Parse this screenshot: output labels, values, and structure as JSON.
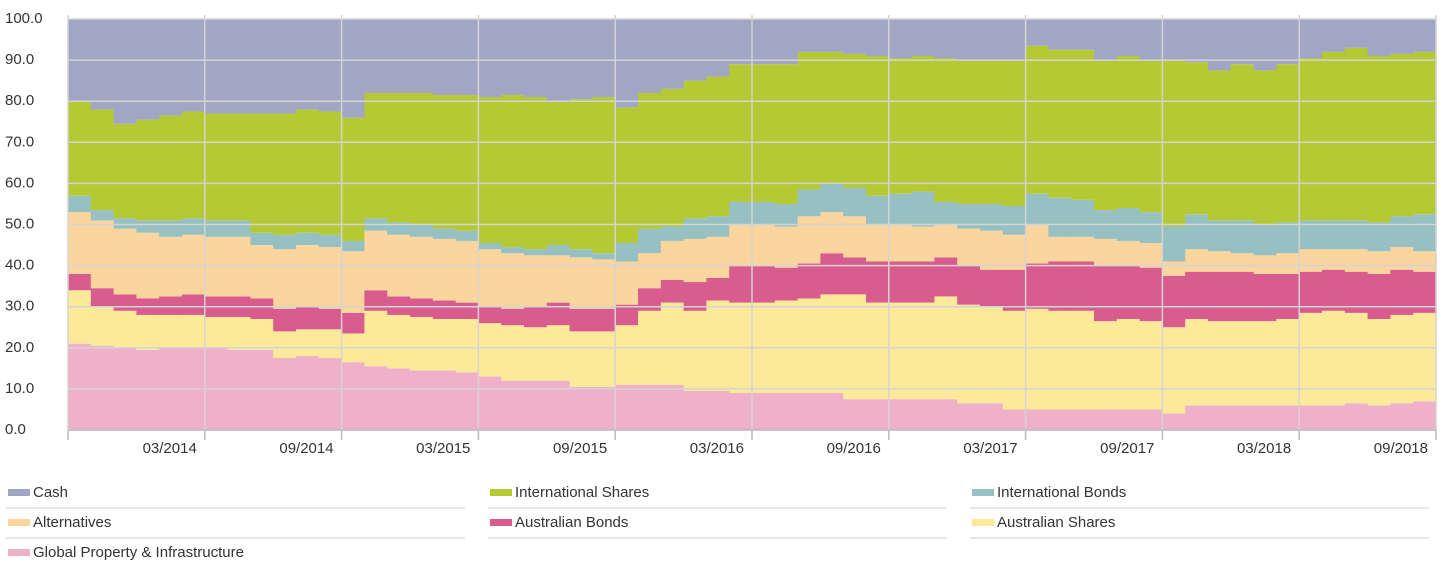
{
  "chart_data": {
    "type": "stacked_step_area",
    "categories": [
      null,
      null,
      null,
      null,
      null,
      "03/2014",
      null,
      null,
      null,
      null,
      null,
      "09/2014",
      null,
      null,
      null,
      null,
      null,
      "03/2015",
      null,
      null,
      null,
      null,
      null,
      "09/2015",
      null,
      null,
      null,
      null,
      null,
      "03/2016",
      null,
      null,
      null,
      null,
      null,
      "09/2016",
      null,
      null,
      null,
      null,
      null,
      "03/2017",
      null,
      null,
      null,
      null,
      null,
      "09/2017",
      null,
      null,
      null,
      null,
      null,
      "03/2018",
      null,
      null,
      null,
      null,
      null,
      "09/2018"
    ],
    "series": [
      {
        "name": "Cash",
        "color": "#a0a6c4",
        "values": [
          20,
          22,
          25.5,
          24.5,
          23.5,
          22.5,
          23,
          23,
          23,
          23,
          22,
          22.5,
          24,
          18,
          18,
          18,
          18.5,
          18.5,
          19,
          18.5,
          19,
          20,
          19.5,
          19,
          21.5,
          18,
          17,
          15,
          14,
          11,
          11,
          11,
          8,
          8,
          8.5,
          9,
          9.5,
          9,
          9.5,
          10,
          10,
          10,
          6.5,
          7.5,
          7.5,
          10,
          9,
          10,
          10,
          10.5,
          12.5,
          11,
          12.5,
          11,
          9.5,
          8,
          7,
          9,
          8.5,
          8
        ]
      },
      {
        "name": "International Shares",
        "color": "#b5c935",
        "values": [
          23,
          24.5,
          23,
          24.5,
          25.5,
          26,
          26,
          26,
          29,
          29.5,
          30,
          30,
          30,
          30.5,
          31.5,
          32,
          32.5,
          33,
          35.5,
          37,
          37,
          35,
          36.5,
          38,
          33,
          33,
          33.5,
          33.5,
          34,
          33.5,
          33.5,
          34,
          33.5,
          32,
          32.5,
          34,
          33,
          33,
          35,
          35,
          35,
          35.5,
          36,
          36,
          36.5,
          36.5,
          37,
          37,
          40.5,
          37,
          36.5,
          38,
          37.5,
          38.5,
          39.5,
          41,
          42,
          40.5,
          39.5,
          39.5
        ]
      },
      {
        "name": "International Bonds",
        "color": "#96c0c2",
        "values": [
          4,
          2.5,
          2.5,
          3,
          4,
          4,
          4,
          4,
          3,
          3.5,
          3,
          3,
          2.5,
          3,
          3,
          3,
          2.5,
          2.5,
          1.5,
          1.5,
          1.5,
          2.5,
          2,
          1.5,
          4.5,
          6,
          3.5,
          5,
          5,
          5.5,
          5.5,
          5.5,
          6.5,
          7,
          7,
          7,
          7.5,
          8.5,
          5.5,
          6,
          6.5,
          7,
          7.5,
          9.5,
          9,
          7,
          8,
          7.5,
          8.5,
          8.5,
          7.5,
          8,
          7.5,
          7.5,
          7,
          7,
          7,
          7,
          7.5,
          9
        ]
      },
      {
        "name": "Alternatives",
        "color": "#fbd59e",
        "values": [
          15,
          16.5,
          16,
          16,
          14.5,
          14.5,
          14.5,
          14.5,
          13,
          14.5,
          15,
          15,
          15,
          14.5,
          15,
          15,
          15,
          15,
          14,
          13.5,
          12.5,
          11.5,
          12.5,
          12,
          10.5,
          8.5,
          9.5,
          10.5,
          10,
          10,
          10,
          10,
          11.5,
          10,
          10,
          9,
          9,
          8.5,
          8,
          9,
          9.5,
          8.5,
          9.5,
          6,
          6,
          6.5,
          6,
          6,
          3.5,
          5.5,
          5,
          4.5,
          4.5,
          5,
          5.5,
          5,
          5.5,
          5.5,
          5.5,
          5
        ]
      },
      {
        "name": "Australian Bonds",
        "color": "#d95c8e",
        "values": [
          4,
          4.5,
          4,
          4,
          4.5,
          5,
          5,
          5,
          5,
          5.5,
          5.5,
          5,
          5,
          5,
          4.5,
          4.5,
          4.5,
          4,
          4,
          4,
          5,
          5.5,
          5.5,
          5.5,
          5,
          5.5,
          5.5,
          7,
          5.5,
          9,
          9,
          8,
          8.5,
          10,
          9,
          10,
          10,
          10,
          9.5,
          9.5,
          9,
          10,
          11,
          12,
          12,
          13.5,
          13,
          13,
          12.5,
          11.5,
          12,
          12,
          11.5,
          11,
          10,
          10,
          10,
          11,
          11,
          10
        ]
      },
      {
        "name": "Australian Shares",
        "color": "#fde99a",
        "values": [
          13,
          9.5,
          9,
          8.5,
          8,
          8,
          7.5,
          8,
          7.5,
          6.5,
          6.5,
          7,
          7,
          13.5,
          13,
          13,
          12.5,
          13,
          13,
          13.5,
          13,
          13.5,
          13.5,
          13.5,
          14.5,
          18,
          20,
          19.5,
          22,
          22,
          22,
          22.5,
          23,
          24,
          25.5,
          23.5,
          23.5,
          23.5,
          25,
          24,
          23.5,
          24,
          24.5,
          24,
          24,
          21.5,
          22,
          21.5,
          21,
          21,
          20.5,
          20.5,
          20.5,
          21,
          22.5,
          23,
          22,
          21,
          21.5,
          21.5
        ]
      },
      {
        "name": "Global Property & Infrastructure",
        "color": "#efb0c9",
        "values": [
          21,
          20.5,
          20,
          19.5,
          20,
          20,
          20,
          19.5,
          19.5,
          17.5,
          18,
          17.5,
          16.5,
          15.5,
          15,
          14.5,
          14.5,
          14,
          13,
          12,
          12,
          12,
          10.5,
          10.5,
          11,
          11,
          11,
          9.5,
          9.5,
          9,
          9,
          9,
          9,
          9,
          7.5,
          7.5,
          7.5,
          7.5,
          7.5,
          6.5,
          6.5,
          5,
          5,
          5,
          5,
          5,
          5,
          5,
          4,
          6,
          6,
          6,
          6,
          6,
          6,
          6,
          6.5,
          6,
          6.5,
          7
        ]
      }
    ],
    "ylim": [
      0,
      100
    ],
    "yticks": [
      {
        "value": 0,
        "label": "0.0"
      },
      {
        "value": 10,
        "label": "10.0"
      },
      {
        "value": 20,
        "label": "20.0"
      },
      {
        "value": 30,
        "label": "30.0"
      },
      {
        "value": 40,
        "label": "40.0"
      },
      {
        "value": 50,
        "label": "50.0"
      },
      {
        "value": 60,
        "label": "60.0"
      },
      {
        "value": 70,
        "label": "70.0"
      },
      {
        "value": 80,
        "label": "80.0"
      },
      {
        "value": 90,
        "label": "90.0"
      },
      {
        "value": 100,
        "label": "100.0"
      }
    ],
    "grid": true
  }
}
